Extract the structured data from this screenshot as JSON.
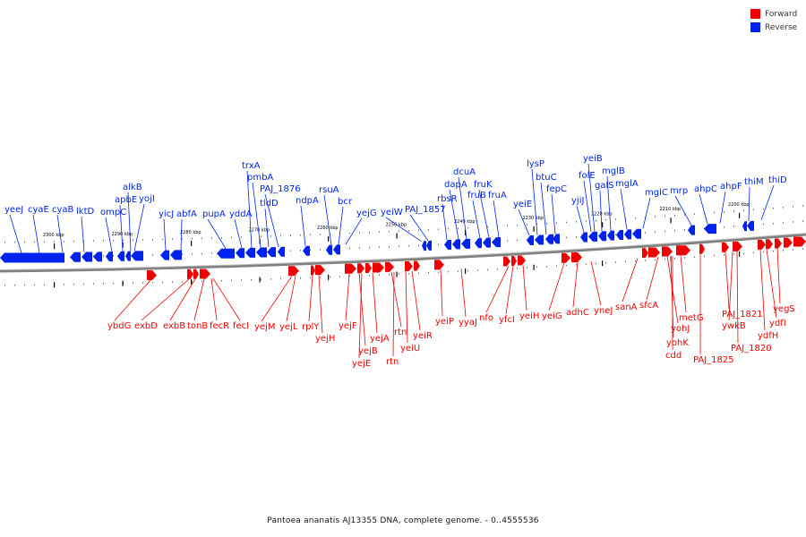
{
  "legend": {
    "forward_label": "Forward",
    "reverse_label": "Reverse",
    "forward_color": "#ee0000",
    "reverse_color": "#0022ee"
  },
  "caption": "Pantoea ananatis AJ13355 DNA, complete genome. - 0..4555536",
  "colors": {
    "backbone": "#808080",
    "tick": "#000000"
  },
  "ticks": [
    {
      "label": "2300 kbp",
      "pos": 2300
    },
    {
      "label": "2290 kbp",
      "pos": 2290
    },
    {
      "label": "2280 kbp",
      "pos": 2280
    },
    {
      "label": "2270 kbp",
      "pos": 2270
    },
    {
      "label": "2260 kbp",
      "pos": 2260
    },
    {
      "label": "2250 kbp",
      "pos": 2250
    },
    {
      "label": "2240 kbp",
      "pos": 2240
    },
    {
      "label": "2230 kbp",
      "pos": 2230
    },
    {
      "label": "2220 kbp",
      "pos": 2220
    },
    {
      "label": "2210 kbp",
      "pos": 2210
    },
    {
      "label": "2200 kbp",
      "pos": 2200
    }
  ],
  "reverse_labels": [
    "yeeJ",
    "cyaE",
    "cyaB",
    "lktD",
    "ompC",
    "alkB",
    "apbE",
    "yojI",
    "yicJ",
    "abfA",
    "pupA",
    "yddA",
    "trxA",
    "pmbA",
    "tldD",
    "PAJ_1876",
    "ndpA",
    "rsuA",
    "bcr",
    "yejG",
    "yeiW",
    "PAJ_1857",
    "rbsR",
    "dapA",
    "dcuA",
    "fruB",
    "fruK",
    "fruA",
    "yeiE",
    "lysP",
    "btuC",
    "fepC",
    "yjiJ",
    "folE",
    "yeiB",
    "galS",
    "mglB",
    "mglA",
    "mglC",
    "mrp",
    "ahpC",
    "ahpF",
    "thiM",
    "thiD"
  ],
  "forward_labels": [
    "ybdG",
    "exbD",
    "exbB",
    "tonB",
    "fecR",
    "fecI",
    "yejM",
    "yejL",
    "rplY",
    "yejH",
    "yejF",
    "yejB",
    "yejE",
    "yejA",
    "rtn",
    "rtn",
    "yeiU",
    "yeiR",
    "yeiP",
    "yyaJ",
    "nfo",
    "yfcI",
    "yeiH",
    "yeiG",
    "adhC",
    "yneJ",
    "sanA",
    "sfcA",
    "yohJ",
    "yohK",
    "cdd",
    "metG",
    "PAJ_1825",
    "PAJ_1821",
    "ywkB",
    "PAJ_1820",
    "ydfH",
    "ydfI",
    "yegS"
  ]
}
